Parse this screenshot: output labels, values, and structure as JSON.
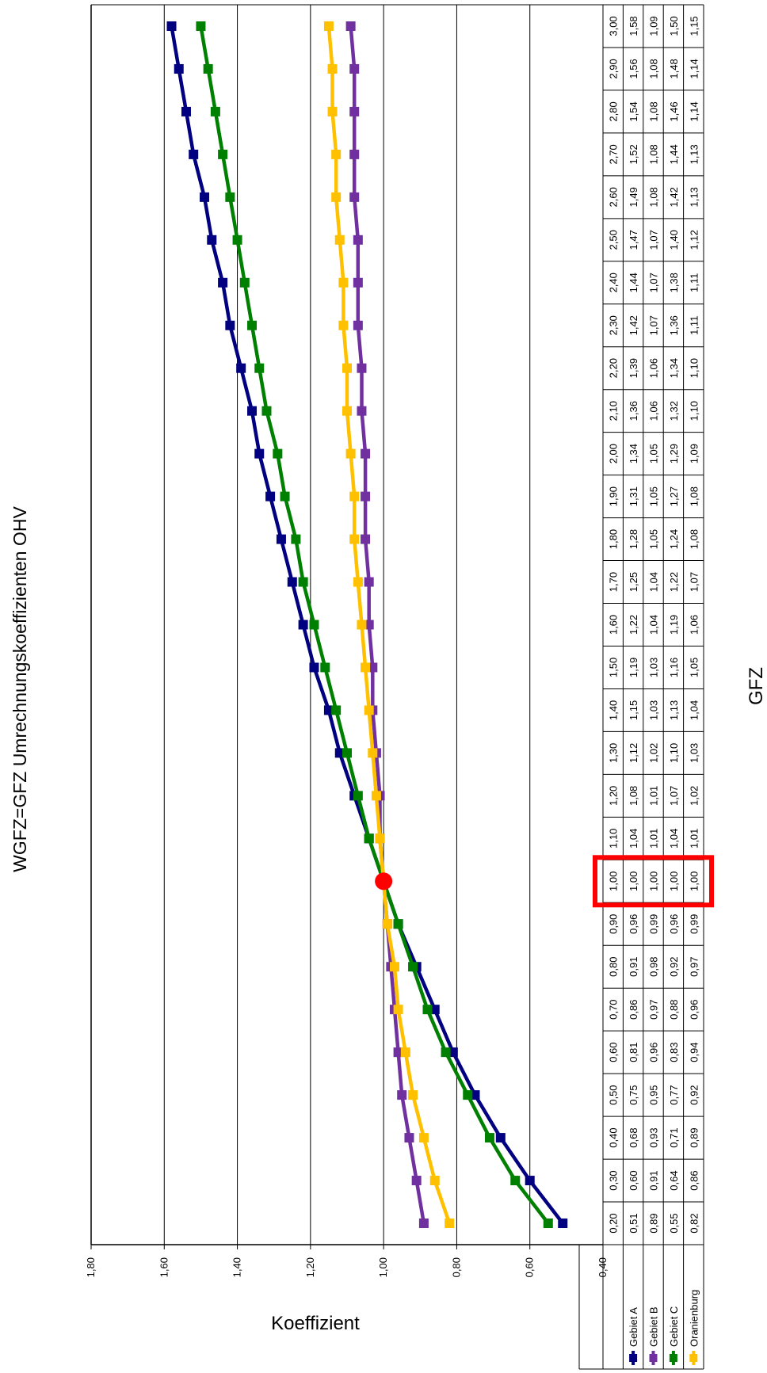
{
  "chart_data": {
    "type": "line",
    "title": "WGFZ=GFZ  Umrechnungskoeffizienten OHV",
    "xlabel": "GFZ",
    "ylabel": "Koeffizient",
    "ylim": [
      0.4,
      1.8
    ],
    "y_ticks": [
      "0,40",
      "0,60",
      "0,80",
      "1,00",
      "1,20",
      "1,40",
      "1,60",
      "1,80"
    ],
    "grid": true,
    "legend_placement": "data-table",
    "x": [
      0.2,
      0.3,
      0.4,
      0.5,
      0.6,
      0.7,
      0.8,
      0.9,
      1.0,
      1.1,
      1.2,
      1.3,
      1.4,
      1.5,
      1.6,
      1.7,
      1.8,
      1.9,
      2.0,
      2.1,
      2.2,
      2.3,
      2.4,
      2.5,
      2.6,
      2.7,
      2.8,
      2.9,
      3.0
    ],
    "x_labels": [
      "0,20",
      "0,30",
      "0,40",
      "0,50",
      "0,60",
      "0,70",
      "0,80",
      "0,90",
      "1,00",
      "1,10",
      "1,20",
      "1,30",
      "1,40",
      "1,50",
      "1,60",
      "1,70",
      "1,80",
      "1,90",
      "2,00",
      "2,10",
      "2,20",
      "2,30",
      "2,40",
      "2,50",
      "2,60",
      "2,70",
      "2,80",
      "2,90",
      "3,00"
    ],
    "series": [
      {
        "name": "Gebiet A",
        "color": "#000080",
        "values": [
          0.51,
          0.6,
          0.68,
          0.75,
          0.81,
          0.86,
          0.91,
          0.96,
          1.0,
          1.04,
          1.08,
          1.12,
          1.15,
          1.19,
          1.22,
          1.25,
          1.28,
          1.31,
          1.34,
          1.36,
          1.39,
          1.42,
          1.44,
          1.47,
          1.49,
          1.52,
          1.54,
          1.56,
          1.58
        ]
      },
      {
        "name": "Gebiet B",
        "color": "#7030A0",
        "values": [
          0.89,
          0.91,
          0.93,
          0.95,
          0.96,
          0.97,
          0.98,
          0.99,
          1.0,
          1.01,
          1.01,
          1.02,
          1.03,
          1.03,
          1.04,
          1.04,
          1.05,
          1.05,
          1.05,
          1.06,
          1.06,
          1.07,
          1.07,
          1.07,
          1.08,
          1.08,
          1.08,
          1.08,
          1.09
        ]
      },
      {
        "name": "Gebiet C",
        "color": "#008000",
        "values": [
          0.55,
          0.64,
          0.71,
          0.77,
          0.83,
          0.88,
          0.92,
          0.96,
          1.0,
          1.04,
          1.07,
          1.1,
          1.13,
          1.16,
          1.19,
          1.22,
          1.24,
          1.27,
          1.29,
          1.32,
          1.34,
          1.36,
          1.38,
          1.4,
          1.42,
          1.44,
          1.46,
          1.48,
          1.5
        ]
      },
      {
        "name": "Oranienburg",
        "color": "#FFC000",
        "values": [
          0.82,
          0.86,
          0.89,
          0.92,
          0.94,
          0.96,
          0.97,
          0.99,
          1.0,
          1.01,
          1.02,
          1.03,
          1.04,
          1.05,
          1.06,
          1.07,
          1.08,
          1.08,
          1.09,
          1.1,
          1.1,
          1.11,
          1.11,
          1.12,
          1.13,
          1.13,
          1.14,
          1.14,
          1.15
        ]
      }
    ],
    "highlight": {
      "x": 1.0,
      "y": 1.0,
      "color": "#FF0000"
    }
  }
}
